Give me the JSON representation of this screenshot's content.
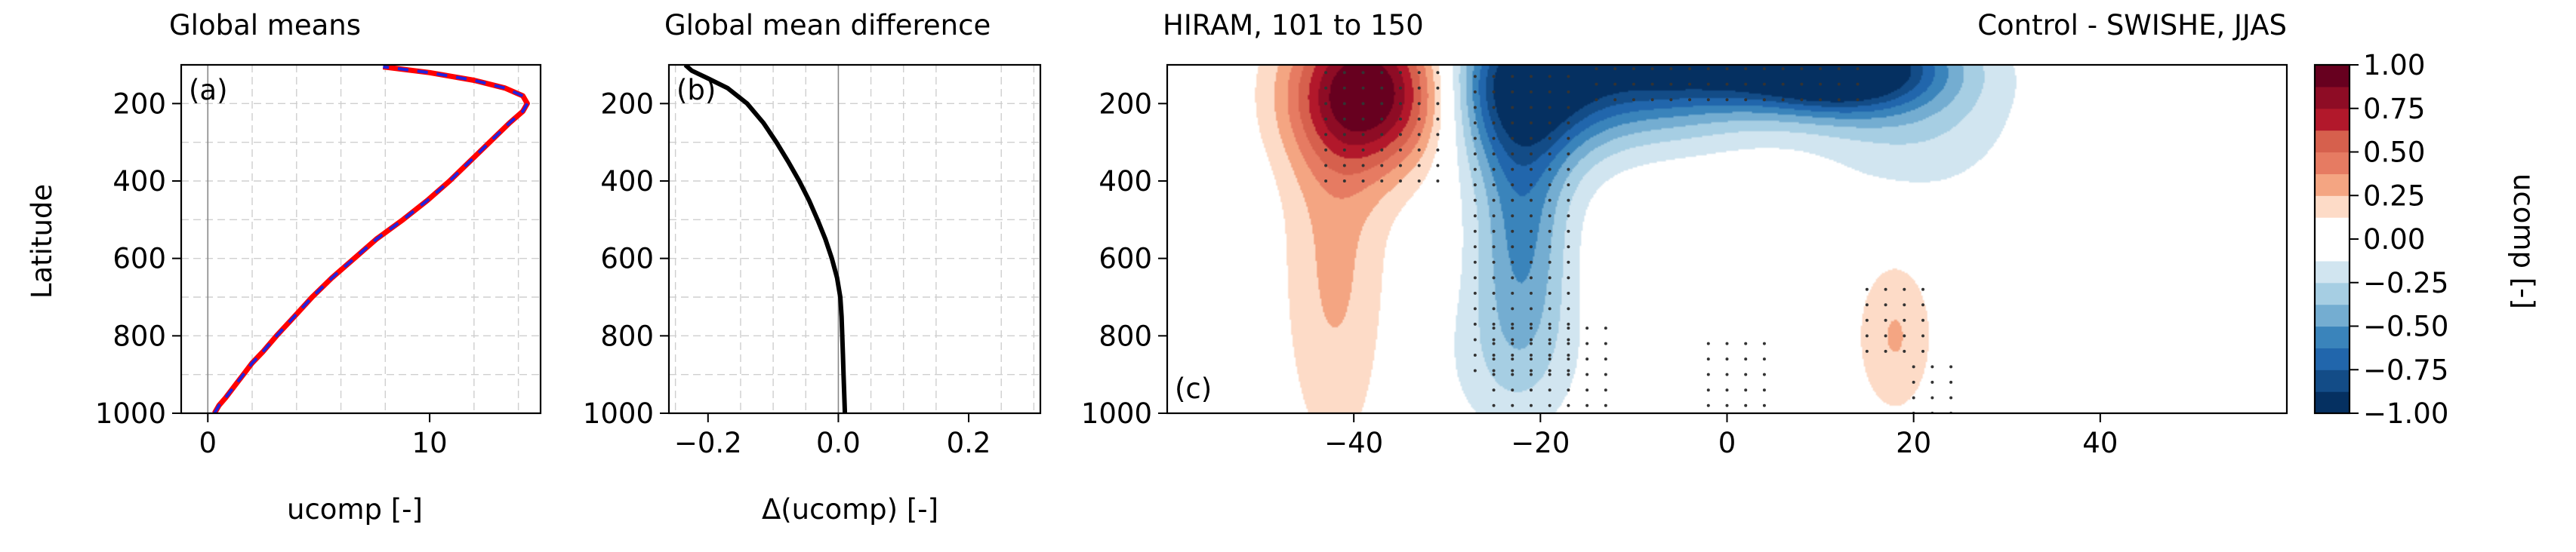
{
  "figure": {
    "panel_a": {
      "title": "Global means",
      "tag": "(a)",
      "ylabel": "Latitude",
      "xlabel": "ucomp [-]",
      "yticks": [
        "200",
        "400",
        "600",
        "800",
        "1000"
      ],
      "xticks": [
        "0",
        "10"
      ]
    },
    "panel_b": {
      "title": "Global mean difference",
      "tag": "(b)",
      "xlabel": "Δ(ucomp) [-]",
      "yticks": [
        "200",
        "400",
        "600",
        "800",
        "1000"
      ],
      "xticks": [
        "−0.2",
        "0.0",
        "0.2"
      ]
    },
    "panel_c": {
      "title_left": "HIRAM, 101 to 150",
      "title_right": "Control - SWISHE, JJAS",
      "tag": "(c)",
      "yticks": [
        "200",
        "400",
        "600",
        "800",
        "1000"
      ],
      "xticks": [
        "−40",
        "−20",
        "0",
        "20",
        "40"
      ]
    },
    "colorbar": {
      "label": "ucomp [-]",
      "ticks": [
        "1.00",
        "0.75",
        "0.50",
        "0.25",
        "0.00",
        "−0.25",
        "−0.50",
        "−0.75",
        "−1.00"
      ]
    }
  },
  "chart_data": [
    {
      "type": "line",
      "panel": "a",
      "title": "Global means",
      "xlabel": "ucomp [-]",
      "ylabel": "Latitude",
      "xlim": [
        -1.2,
        15.0
      ],
      "ylim": [
        1000,
        100
      ],
      "y_inverted": true,
      "grid": true,
      "series": [
        {
          "color": "#ff0000",
          "style": "solid",
          "y": [
            1000,
            980,
            960,
            930,
            900,
            870,
            840,
            800,
            750,
            700,
            650,
            600,
            550,
            500,
            450,
            400,
            350,
            300,
            250,
            220,
            200,
            180,
            160,
            140,
            120,
            105
          ],
          "x": [
            0.3,
            0.5,
            0.8,
            1.2,
            1.6,
            2.0,
            2.5,
            3.1,
            3.9,
            4.7,
            5.6,
            6.6,
            7.6,
            8.8,
            9.9,
            10.9,
            11.8,
            12.7,
            13.6,
            14.2,
            14.4,
            14.2,
            13.4,
            12.0,
            10.0,
            7.9
          ]
        },
        {
          "color": "#2222dd",
          "style": "dashed",
          "y": [
            1000,
            980,
            960,
            930,
            900,
            870,
            840,
            800,
            750,
            700,
            650,
            600,
            550,
            500,
            450,
            400,
            350,
            300,
            250,
            220,
            200,
            180,
            160,
            140,
            120,
            105
          ],
          "x": [
            0.3,
            0.5,
            0.8,
            1.2,
            1.6,
            2.0,
            2.5,
            3.1,
            3.9,
            4.7,
            5.6,
            6.6,
            7.6,
            8.8,
            9.9,
            10.9,
            11.8,
            12.7,
            13.6,
            14.2,
            14.4,
            14.2,
            13.4,
            12.0,
            10.0,
            7.9
          ]
        }
      ]
    },
    {
      "type": "line",
      "panel": "b",
      "title": "Global mean difference",
      "xlabel": "Δ(ucomp) [-]",
      "xlim": [
        -0.26,
        0.31
      ],
      "ylim": [
        1000,
        100
      ],
      "y_inverted": true,
      "grid": true,
      "series": [
        {
          "color": "#000000",
          "style": "solid",
          "y": [
            100,
            115,
            135,
            160,
            200,
            250,
            300,
            350,
            400,
            450,
            500,
            550,
            600,
            650,
            700,
            750,
            800,
            850,
            900,
            950,
            1000
          ],
          "x": [
            -0.235,
            -0.225,
            -0.2,
            -0.17,
            -0.14,
            -0.115,
            -0.095,
            -0.077,
            -0.06,
            -0.045,
            -0.032,
            -0.02,
            -0.01,
            -0.002,
            0.003,
            0.005,
            0.006,
            0.007,
            0.008,
            0.009,
            0.01
          ]
        }
      ]
    },
    {
      "type": "heatmap",
      "panel": "c",
      "subtype": "filled-contour",
      "title_left": "HIRAM, 101 to 150",
      "title_right": "Control - SWISHE, JJAS",
      "xlim": [
        -60,
        60
      ],
      "ylim": [
        1000,
        100
      ],
      "y_inverted": true,
      "colormap": "RdBu_r",
      "levels": [
        -1.0,
        -0.875,
        -0.75,
        -0.625,
        -0.5,
        -0.375,
        -0.25,
        -0.125,
        0.125,
        0.25,
        0.375,
        0.5,
        0.625,
        0.75,
        0.875,
        1.0
      ],
      "blobs": [
        {
          "x": -38,
          "y": 170,
          "sx": 6.0,
          "sy": 140,
          "amp": 0.98
        },
        {
          "x": -42,
          "y": 600,
          "sx": 4.0,
          "sy": 380,
          "amp": 0.28
        },
        {
          "x": -22,
          "y": 160,
          "sx": 6.0,
          "sy": 150,
          "amp": -0.85
        },
        {
          "x": -8,
          "y": 150,
          "sx": 9.0,
          "sy": 110,
          "amp": -0.55
        },
        {
          "x": 12,
          "y": 110,
          "sx": 7.0,
          "sy": 80,
          "amp": -1.0
        },
        {
          "x": 0,
          "y": 100,
          "sx": 12.0,
          "sy": 70,
          "amp": -0.5
        },
        {
          "x": -22,
          "y": 520,
          "sx": 3.5,
          "sy": 220,
          "amp": -0.5
        },
        {
          "x": -23,
          "y": 860,
          "sx": 5.5,
          "sy": 160,
          "amp": -0.2
        },
        {
          "x": 20,
          "y": 220,
          "sx": 8.0,
          "sy": 160,
          "amp": -0.25
        },
        {
          "x": 18,
          "y": 800,
          "sx": 3.0,
          "sy": 150,
          "amp": 0.26
        }
      ],
      "stippling": [
        {
          "x0": -43,
          "x1": -31,
          "y0": 120,
          "y1": 400
        },
        {
          "x0": -27,
          "x1": -16,
          "y0": 130,
          "y1": 900
        },
        {
          "x0": -25,
          "x1": -12,
          "y0": 780,
          "y1": 1000
        },
        {
          "x0": -14,
          "x1": 14,
          "y0": 110,
          "y1": 190
        },
        {
          "x0": -2,
          "x1": 5,
          "y0": 820,
          "y1": 1000
        },
        {
          "x0": 15,
          "x1": 22,
          "y0": 680,
          "y1": 860
        },
        {
          "x0": 20,
          "x1": 25,
          "y0": 880,
          "y1": 1000
        }
      ]
    }
  ]
}
